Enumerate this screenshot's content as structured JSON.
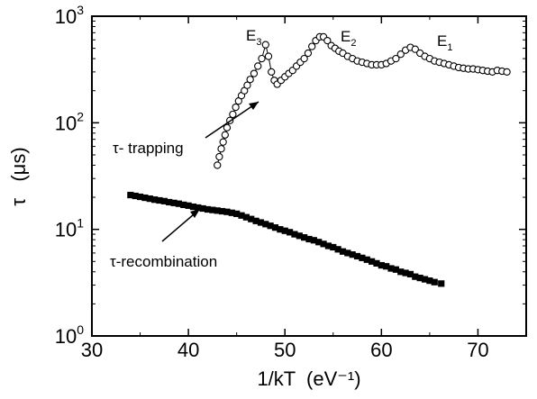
{
  "chart_data": {
    "type": "scatter",
    "title": "",
    "xlabel": "1/kT  (eV⁻¹)",
    "ylabel": "τ   (μs)",
    "xlim": [
      30,
      75
    ],
    "ylim": [
      1,
      1000
    ],
    "yscale": "log",
    "grid": false,
    "legend": "none",
    "x_ticks": [
      {
        "v": 30,
        "label": "30"
      },
      {
        "v": 40,
        "label": "40"
      },
      {
        "v": 50,
        "label": "50"
      },
      {
        "v": 60,
        "label": "60"
      },
      {
        "v": 70,
        "label": "70"
      }
    ],
    "y_ticks": [
      {
        "v": 1,
        "base": "10",
        "exp": "0"
      },
      {
        "v": 10,
        "base": "10",
        "exp": "1"
      },
      {
        "v": 100,
        "base": "10",
        "exp": "2"
      },
      {
        "v": 1000,
        "base": "10",
        "exp": "3"
      }
    ],
    "annotations": {
      "trapping_label": "τ- trapping",
      "recombination_label": "τ-recombination",
      "e3_base": "E",
      "e3_sub": "3",
      "e2_base": "E",
      "e2_sub": "2",
      "e1_base": "E",
      "e1_sub": "1"
    },
    "series": [
      {
        "marker": "open-circle",
        "points": [
          [
            43.0,
            40
          ],
          [
            43.2,
            48
          ],
          [
            43.4,
            57
          ],
          [
            43.6,
            66
          ],
          [
            43.8,
            77
          ],
          [
            44.0,
            90
          ],
          [
            44.3,
            105
          ],
          [
            44.6,
            120
          ],
          [
            44.9,
            140
          ],
          [
            45.2,
            160
          ],
          [
            45.5,
            180
          ],
          [
            45.8,
            200
          ],
          [
            46.1,
            225
          ],
          [
            46.4,
            255
          ],
          [
            46.8,
            290
          ],
          [
            47.2,
            340
          ],
          [
            47.6,
            400
          ],
          [
            48.0,
            540
          ],
          [
            48.3,
            420
          ],
          [
            48.6,
            300
          ],
          [
            48.9,
            250
          ],
          [
            49.2,
            230
          ],
          [
            49.6,
            250
          ],
          [
            50.0,
            270
          ],
          [
            50.4,
            290
          ],
          [
            50.8,
            310
          ],
          [
            51.2,
            340
          ],
          [
            51.6,
            370
          ],
          [
            52.0,
            400
          ],
          [
            52.4,
            450
          ],
          [
            52.8,
            520
          ],
          [
            53.2,
            590
          ],
          [
            53.6,
            640
          ],
          [
            54.0,
            640
          ],
          [
            54.4,
            590
          ],
          [
            54.8,
            530
          ],
          [
            55.2,
            500
          ],
          [
            55.6,
            470
          ],
          [
            56.0,
            450
          ],
          [
            56.5,
            420
          ],
          [
            57.0,
            400
          ],
          [
            57.5,
            380
          ],
          [
            58.0,
            370
          ],
          [
            58.5,
            360
          ],
          [
            59.0,
            350
          ],
          [
            59.5,
            350
          ],
          [
            60.0,
            350
          ],
          [
            60.5,
            360
          ],
          [
            61.0,
            380
          ],
          [
            61.5,
            400
          ],
          [
            62.0,
            440
          ],
          [
            62.5,
            480
          ],
          [
            63.0,
            510
          ],
          [
            63.5,
            490
          ],
          [
            64.0,
            450
          ],
          [
            64.5,
            420
          ],
          [
            65.0,
            400
          ],
          [
            65.5,
            380
          ],
          [
            66.0,
            370
          ],
          [
            66.5,
            360
          ],
          [
            67.0,
            350
          ],
          [
            67.5,
            340
          ],
          [
            68.0,
            330
          ],
          [
            68.5,
            325
          ],
          [
            69.0,
            320
          ],
          [
            69.5,
            320
          ],
          [
            70.0,
            315
          ],
          [
            70.5,
            310
          ],
          [
            71.0,
            305
          ],
          [
            71.5,
            300
          ],
          [
            72.0,
            310
          ],
          [
            72.5,
            305
          ],
          [
            73.0,
            300
          ]
        ]
      },
      {
        "marker": "filled-square",
        "points": [
          [
            34.0,
            21.0
          ],
          [
            34.5,
            20.6
          ],
          [
            35.0,
            20.2
          ],
          [
            35.5,
            19.8
          ],
          [
            36.0,
            19.4
          ],
          [
            36.5,
            19.0
          ],
          [
            37.0,
            18.7
          ],
          [
            37.5,
            18.4
          ],
          [
            38.0,
            18.0
          ],
          [
            38.5,
            17.7
          ],
          [
            39.0,
            17.4
          ],
          [
            39.5,
            17.0
          ],
          [
            40.0,
            16.7
          ],
          [
            40.5,
            16.3
          ],
          [
            41.0,
            16.0
          ],
          [
            41.5,
            15.7
          ],
          [
            42.0,
            15.4
          ],
          [
            42.5,
            15.2
          ],
          [
            43.0,
            15.0
          ],
          [
            43.5,
            14.8
          ],
          [
            44.0,
            14.6
          ],
          [
            44.5,
            14.3
          ],
          [
            45.0,
            14.0
          ],
          [
            45.5,
            13.5
          ],
          [
            46.0,
            13.0
          ],
          [
            46.5,
            12.5
          ],
          [
            47.0,
            12.0
          ],
          [
            47.5,
            11.6
          ],
          [
            48.0,
            11.2
          ],
          [
            48.5,
            10.8
          ],
          [
            49.0,
            10.4
          ],
          [
            49.5,
            10.0
          ],
          [
            50.0,
            9.7
          ],
          [
            50.5,
            9.4
          ],
          [
            51.0,
            9.0
          ],
          [
            51.5,
            8.7
          ],
          [
            52.0,
            8.4
          ],
          [
            52.5,
            8.1
          ],
          [
            53.0,
            7.9
          ],
          [
            53.5,
            7.6
          ],
          [
            54.0,
            7.3
          ],
          [
            54.5,
            7.0
          ],
          [
            55.0,
            6.8
          ],
          [
            55.5,
            6.5
          ],
          [
            56.0,
            6.2
          ],
          [
            56.5,
            6.0
          ],
          [
            57.0,
            5.8
          ],
          [
            57.5,
            5.6
          ],
          [
            58.0,
            5.4
          ],
          [
            58.5,
            5.2
          ],
          [
            59.0,
            5.0
          ],
          [
            59.5,
            4.8
          ],
          [
            60.0,
            4.6
          ],
          [
            60.5,
            4.5
          ],
          [
            61.0,
            4.3
          ],
          [
            61.5,
            4.2
          ],
          [
            62.0,
            4.0
          ],
          [
            62.5,
            3.9
          ],
          [
            63.0,
            3.8
          ],
          [
            63.5,
            3.6
          ],
          [
            64.0,
            3.5
          ],
          [
            64.5,
            3.4
          ],
          [
            65.0,
            3.3
          ],
          [
            65.5,
            3.2
          ],
          [
            66.2,
            3.1
          ]
        ]
      }
    ]
  }
}
